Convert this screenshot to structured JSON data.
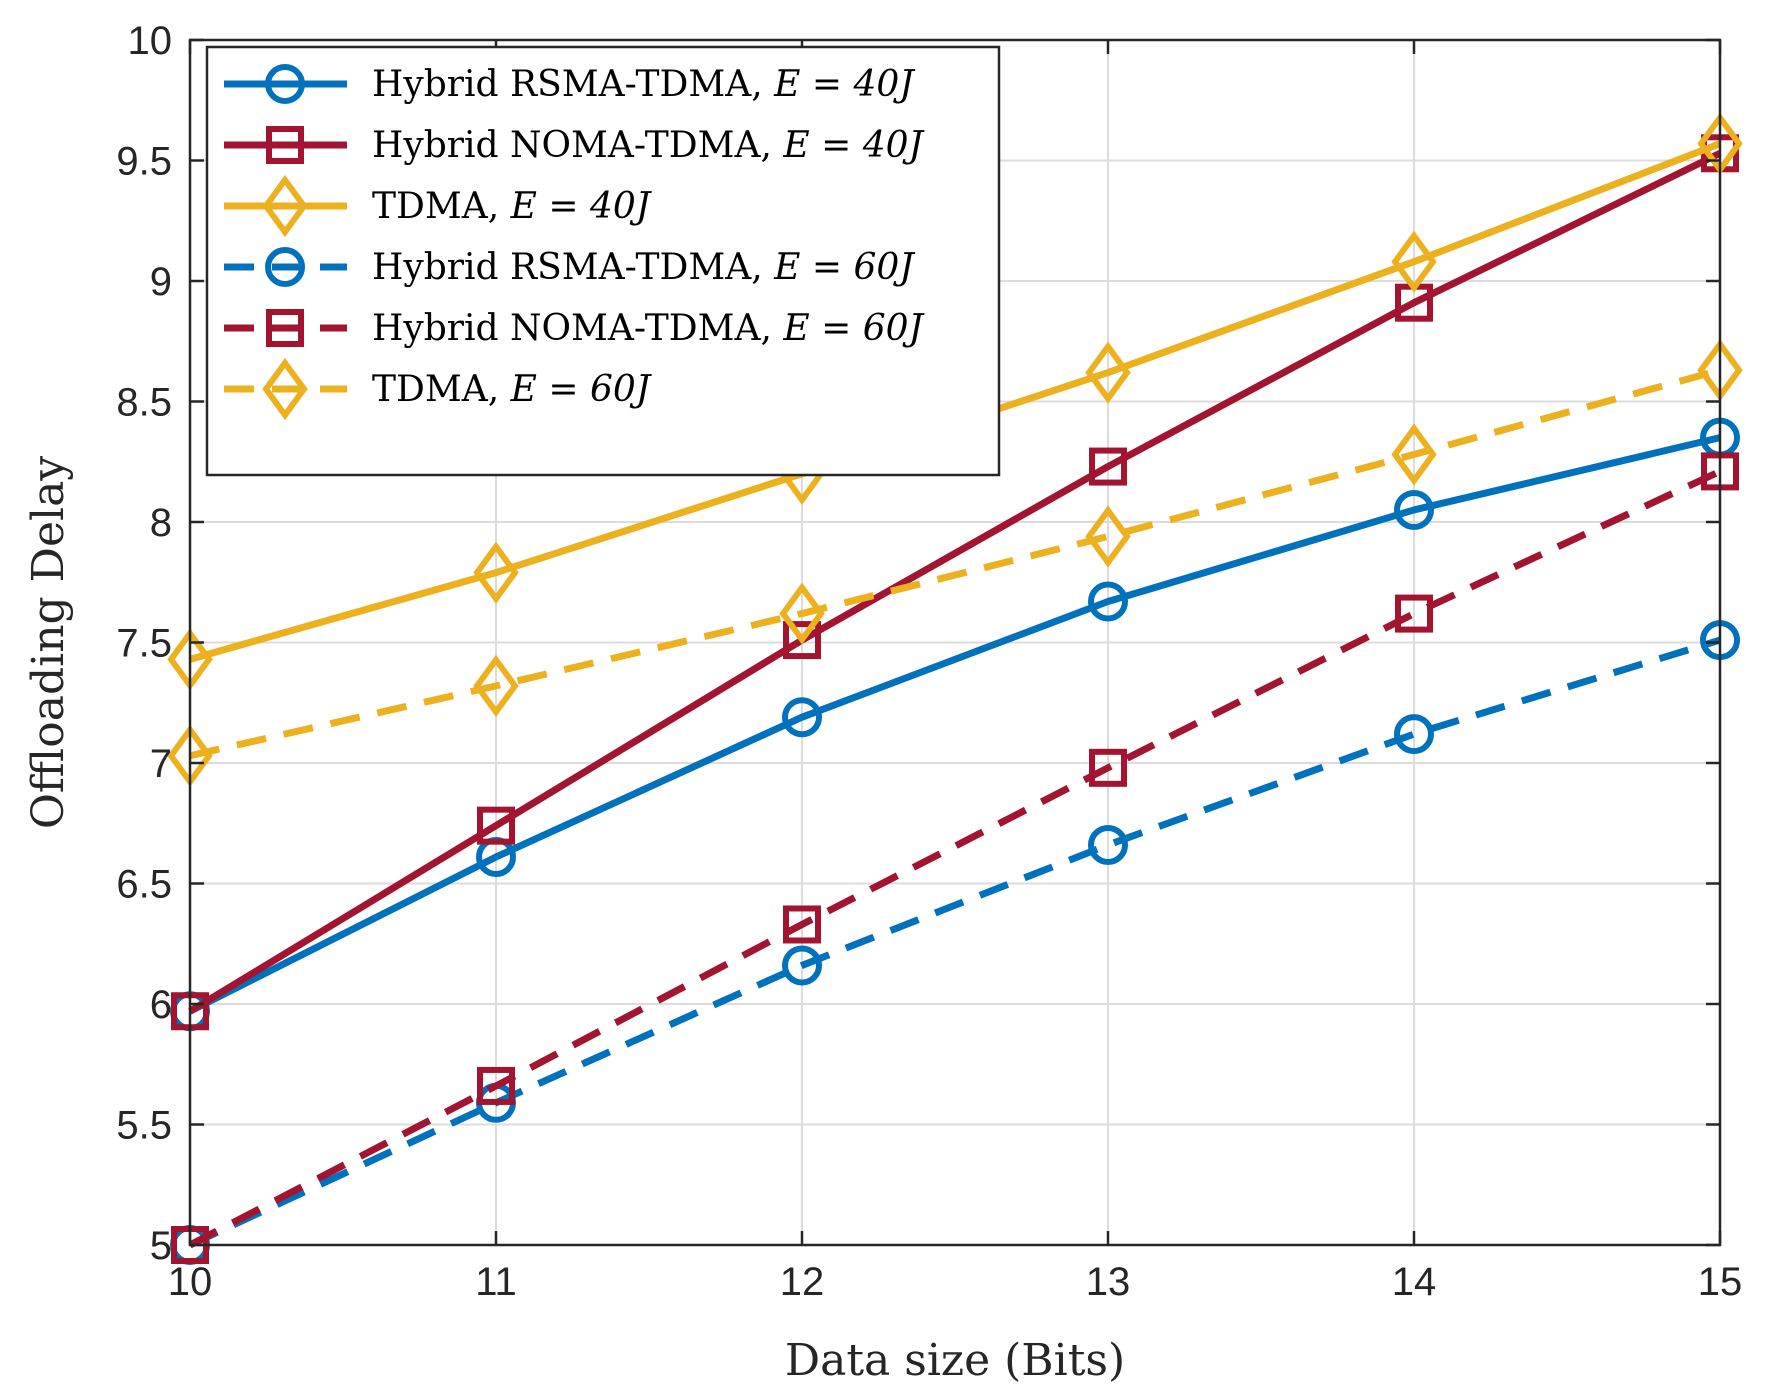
{
  "chart_data": {
    "type": "line",
    "title": "",
    "xlabel": "Data size (Bits)",
    "ylabel": "Offloading Delay",
    "x": [
      10,
      11,
      12,
      13,
      14,
      15
    ],
    "xlim": [
      10,
      15
    ],
    "ylim": [
      5,
      10
    ],
    "xticks": [
      "10",
      "11",
      "12",
      "13",
      "14",
      "15"
    ],
    "yticks": [
      "5",
      "5.5",
      "6",
      "6.5",
      "7",
      "7.5",
      "8",
      "8.5",
      "9",
      "9.5",
      "10"
    ],
    "grid": true,
    "legend_position": "top-left",
    "series": [
      {
        "name": "Hybrid RSMA-TDMA, ",
        "math": "E = 40J",
        "color": "#0072BD",
        "marker": "circle",
        "dash": "solid",
        "values": [
          5.97,
          6.61,
          7.19,
          7.67,
          8.05,
          8.35
        ]
      },
      {
        "name": "Hybrid NOMA-TDMA, ",
        "math": "E = 40J",
        "color": "#A2142F",
        "marker": "square",
        "dash": "solid",
        "values": [
          5.97,
          6.74,
          7.51,
          8.23,
          8.91,
          9.53
        ]
      },
      {
        "name": "TDMA, ",
        "math": "E = 40J",
        "color": "#EDB120",
        "marker": "diamond",
        "dash": "solid",
        "values": [
          7.43,
          7.79,
          8.2,
          8.62,
          9.08,
          9.57
        ]
      },
      {
        "name": "Hybrid RSMA-TDMA, ",
        "math": "E = 60J",
        "color": "#0072BD",
        "marker": "circle",
        "dash": "dashed",
        "values": [
          5.0,
          5.59,
          6.16,
          6.66,
          7.12,
          7.51
        ]
      },
      {
        "name": "Hybrid NOMA-TDMA, ",
        "math": "E = 60J",
        "color": "#A2142F",
        "marker": "square",
        "dash": "dashed",
        "values": [
          5.0,
          5.66,
          6.33,
          6.98,
          7.62,
          8.21
        ]
      },
      {
        "name": "TDMA, ",
        "math": "E = 60J",
        "color": "#EDB120",
        "marker": "diamond",
        "dash": "dashed",
        "values": [
          7.03,
          7.32,
          7.62,
          7.94,
          8.28,
          8.63
        ]
      }
    ]
  }
}
